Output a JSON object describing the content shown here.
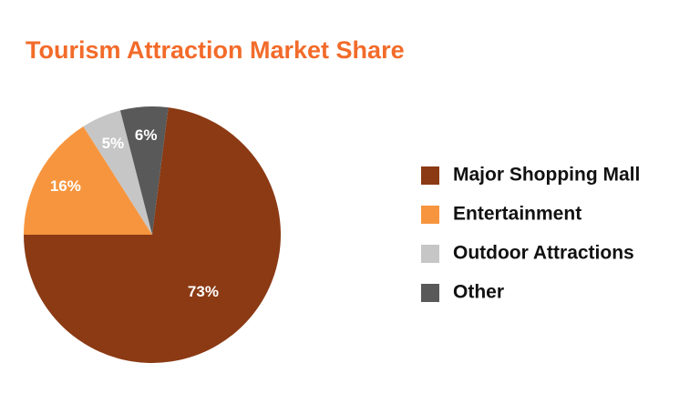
{
  "chart_data": {
    "type": "pie",
    "title": "Tourism Attraction Market Share",
    "categories": [
      "Major Shopping Mall",
      "Entertainment",
      "Outdoor Attractions",
      "Other"
    ],
    "values": [
      73,
      16,
      5,
      6
    ],
    "value_labels": [
      "73%",
      "16%",
      "5%",
      "6%"
    ],
    "colors": [
      "#8b3a14",
      "#f7953e",
      "#c6c6c6",
      "#595959"
    ],
    "legend": "right"
  }
}
